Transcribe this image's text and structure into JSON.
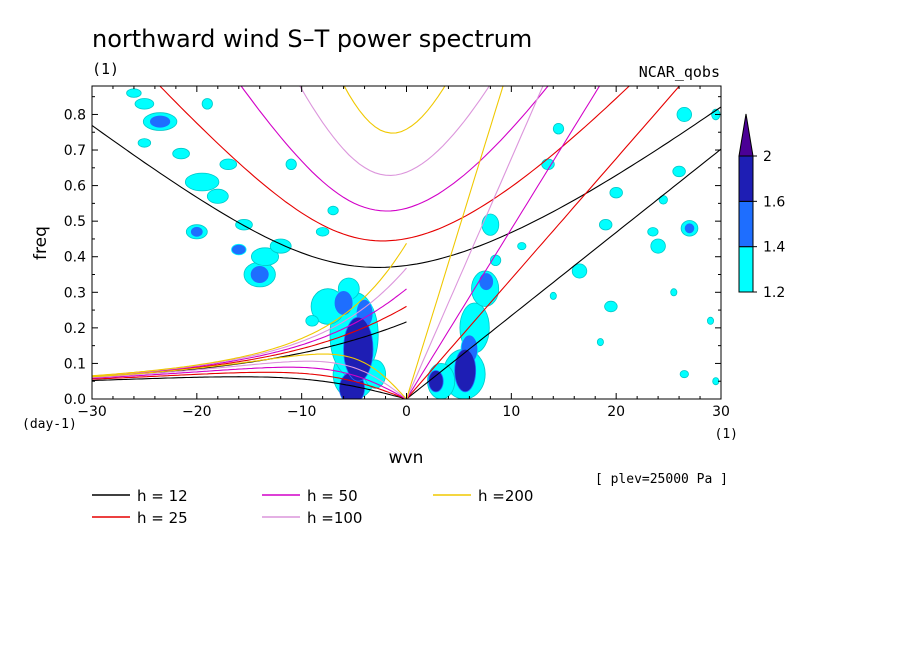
{
  "chart_data": {
    "type": "heatmap",
    "title": "northward wind S–T power spectrum",
    "subtitle_left": "(1)",
    "subtitle_right": "NCAR_qobs",
    "xlabel": "wvn",
    "ylabel": "freq",
    "x_unit_label": "(1)",
    "y_unit_label": "(day-1)",
    "note": "[ plev=25000 Pa ]",
    "xlim": [
      -30,
      30
    ],
    "ylim": [
      0,
      0.88
    ],
    "xticks": [
      -30,
      -20,
      -10,
      0,
      10,
      20,
      30
    ],
    "yticks": [
      0.0,
      0.1,
      0.2,
      0.3,
      0.4,
      0.5,
      0.6,
      0.7,
      0.8
    ],
    "xtick_labels": [
      "−30",
      "−20",
      "−10",
      "0",
      "10",
      "20",
      "30"
    ],
    "ytick_labels": [
      "0.0",
      "0.1",
      "0.2",
      "0.3",
      "0.4",
      "0.5",
      "0.6",
      "0.7",
      "0.8"
    ],
    "colorbar": {
      "levels": [
        "1.2",
        "1.4",
        "1.6",
        "2"
      ],
      "colors": [
        "#00ffff",
        "#1e6eff",
        "#1e1eb4",
        "#4b0096"
      ]
    },
    "dispersion_curves": [
      {
        "name": "h = 12",
        "h": 12,
        "color": "#000000"
      },
      {
        "name": "h = 25",
        "h": 25,
        "color": "#e60000"
      },
      {
        "name": "h = 50",
        "h": 50,
        "color": "#d200c8"
      },
      {
        "name": "h =100",
        "h": 100,
        "color": "#dc96dc"
      },
      {
        "name": "h =200",
        "h": 200,
        "color": "#f0c800"
      }
    ],
    "blobs": [
      {
        "x": -5.2,
        "y": 0.03,
        "rx": 1.2,
        "ry": 0.045,
        "level": 3
      },
      {
        "x": -4.6,
        "y": 0.14,
        "rx": 1.4,
        "ry": 0.09,
        "level": 3
      },
      {
        "x": -4.0,
        "y": 0.24,
        "rx": 0.8,
        "ry": 0.04,
        "level": 2
      },
      {
        "x": -6.0,
        "y": 0.27,
        "rx": 0.9,
        "ry": 0.035,
        "level": 2
      },
      {
        "x": -5.0,
        "y": 0.07,
        "rx": 2.0,
        "ry": 0.07,
        "level": 1
      },
      {
        "x": -5.0,
        "y": 0.18,
        "rx": 2.3,
        "ry": 0.12,
        "level": 1
      },
      {
        "x": -7.5,
        "y": 0.26,
        "rx": 1.6,
        "ry": 0.05,
        "level": 1
      },
      {
        "x": -5.5,
        "y": 0.31,
        "rx": 1.0,
        "ry": 0.03,
        "level": 1
      },
      {
        "x": -3.0,
        "y": 0.07,
        "rx": 1.0,
        "ry": 0.04,
        "level": 1
      },
      {
        "x": 5.6,
        "y": 0.08,
        "rx": 1.0,
        "ry": 0.06,
        "level": 3
      },
      {
        "x": 2.8,
        "y": 0.05,
        "rx": 0.7,
        "ry": 0.03,
        "level": 3
      },
      {
        "x": 6.0,
        "y": 0.14,
        "rx": 0.8,
        "ry": 0.04,
        "level": 2
      },
      {
        "x": 7.6,
        "y": 0.33,
        "rx": 0.7,
        "ry": 0.025,
        "level": 2
      },
      {
        "x": 5.5,
        "y": 0.07,
        "rx": 2.0,
        "ry": 0.07,
        "level": 1
      },
      {
        "x": 3.3,
        "y": 0.05,
        "rx": 1.3,
        "ry": 0.05,
        "level": 1
      },
      {
        "x": 6.5,
        "y": 0.2,
        "rx": 1.4,
        "ry": 0.07,
        "level": 1
      },
      {
        "x": 7.5,
        "y": 0.31,
        "rx": 1.3,
        "ry": 0.05,
        "level": 1
      },
      {
        "x": 8.0,
        "y": 0.49,
        "rx": 0.8,
        "ry": 0.03,
        "level": 1
      },
      {
        "x": -14.0,
        "y": 0.35,
        "rx": 0.9,
        "ry": 0.025,
        "level": 2
      },
      {
        "x": -14.0,
        "y": 0.35,
        "rx": 1.5,
        "ry": 0.035,
        "level": 1
      },
      {
        "x": -13.5,
        "y": 0.4,
        "rx": 1.3,
        "ry": 0.025,
        "level": 1
      },
      {
        "x": -12.0,
        "y": 0.43,
        "rx": 1.0,
        "ry": 0.02,
        "level": 1
      },
      {
        "x": -16.0,
        "y": 0.42,
        "rx": 0.7,
        "ry": 0.015,
        "level": 2
      },
      {
        "x": -19.5,
        "y": 0.61,
        "rx": 1.6,
        "ry": 0.025,
        "level": 1
      },
      {
        "x": -18.0,
        "y": 0.57,
        "rx": 1.0,
        "ry": 0.02,
        "level": 1
      },
      {
        "x": -20.0,
        "y": 0.47,
        "rx": 0.6,
        "ry": 0.015,
        "level": 2
      },
      {
        "x": -20.0,
        "y": 0.47,
        "rx": 1.0,
        "ry": 0.02,
        "level": 1
      },
      {
        "x": -17.0,
        "y": 0.66,
        "rx": 0.8,
        "ry": 0.015,
        "level": 1
      },
      {
        "x": -23.5,
        "y": 0.78,
        "rx": 1.0,
        "ry": 0.018,
        "level": 2
      },
      {
        "x": -23.5,
        "y": 0.78,
        "rx": 1.6,
        "ry": 0.025,
        "level": 1
      },
      {
        "x": -25.0,
        "y": 0.83,
        "rx": 0.9,
        "ry": 0.015,
        "level": 1
      },
      {
        "x": -21.5,
        "y": 0.69,
        "rx": 0.8,
        "ry": 0.015,
        "level": 1
      },
      {
        "x": -25.0,
        "y": 0.72,
        "rx": 0.6,
        "ry": 0.012,
        "level": 1
      },
      {
        "x": -11.0,
        "y": 0.66,
        "rx": 0.5,
        "ry": 0.015,
        "level": 1
      },
      {
        "x": -15.5,
        "y": 0.49,
        "rx": 0.8,
        "ry": 0.015,
        "level": 1
      },
      {
        "x": -8.0,
        "y": 0.47,
        "rx": 0.6,
        "ry": 0.012,
        "level": 1
      },
      {
        "x": -7.0,
        "y": 0.53,
        "rx": 0.5,
        "ry": 0.012,
        "level": 1
      },
      {
        "x": -9.0,
        "y": 0.22,
        "rx": 0.6,
        "ry": 0.015,
        "level": 1
      },
      {
        "x": -26.0,
        "y": 0.86,
        "rx": 0.7,
        "ry": 0.012,
        "level": 1
      },
      {
        "x": -19.0,
        "y": 0.83,
        "rx": 0.5,
        "ry": 0.015,
        "level": 1
      },
      {
        "x": 8.5,
        "y": 0.39,
        "rx": 0.5,
        "ry": 0.015,
        "level": 1
      },
      {
        "x": 11.0,
        "y": 0.43,
        "rx": 0.4,
        "ry": 0.01,
        "level": 1
      },
      {
        "x": 13.5,
        "y": 0.66,
        "rx": 0.6,
        "ry": 0.015,
        "level": 1
      },
      {
        "x": 14.5,
        "y": 0.76,
        "rx": 0.5,
        "ry": 0.015,
        "level": 1
      },
      {
        "x": 16.5,
        "y": 0.36,
        "rx": 0.7,
        "ry": 0.02,
        "level": 1
      },
      {
        "x": 19.0,
        "y": 0.49,
        "rx": 0.6,
        "ry": 0.015,
        "level": 1
      },
      {
        "x": 20.0,
        "y": 0.58,
        "rx": 0.6,
        "ry": 0.015,
        "level": 1
      },
      {
        "x": 23.5,
        "y": 0.47,
        "rx": 0.5,
        "ry": 0.012,
        "level": 1
      },
      {
        "x": 24.0,
        "y": 0.43,
        "rx": 0.7,
        "ry": 0.02,
        "level": 1
      },
      {
        "x": 26.0,
        "y": 0.64,
        "rx": 0.6,
        "ry": 0.015,
        "level": 1
      },
      {
        "x": 27.0,
        "y": 0.48,
        "rx": 0.5,
        "ry": 0.015,
        "level": 2
      },
      {
        "x": 27.0,
        "y": 0.48,
        "rx": 0.8,
        "ry": 0.022,
        "level": 1
      },
      {
        "x": 26.5,
        "y": 0.8,
        "rx": 0.7,
        "ry": 0.02,
        "level": 1
      },
      {
        "x": 24.5,
        "y": 0.56,
        "rx": 0.4,
        "ry": 0.012,
        "level": 1
      },
      {
        "x": 19.5,
        "y": 0.26,
        "rx": 0.6,
        "ry": 0.015,
        "level": 1
      },
      {
        "x": 18.5,
        "y": 0.16,
        "rx": 0.3,
        "ry": 0.01,
        "level": 1
      },
      {
        "x": 26.5,
        "y": 0.07,
        "rx": 0.4,
        "ry": 0.01,
        "level": 1
      },
      {
        "x": 25.5,
        "y": 0.3,
        "rx": 0.3,
        "ry": 0.01,
        "level": 1
      },
      {
        "x": 29.5,
        "y": 0.05,
        "rx": 0.3,
        "ry": 0.01,
        "level": 1
      },
      {
        "x": 29.0,
        "y": 0.22,
        "rx": 0.3,
        "ry": 0.01,
        "level": 1
      },
      {
        "x": 29.5,
        "y": 0.8,
        "rx": 0.4,
        "ry": 0.015,
        "level": 1
      },
      {
        "x": 14.0,
        "y": 0.29,
        "rx": 0.3,
        "ry": 0.01,
        "level": 1
      }
    ]
  }
}
